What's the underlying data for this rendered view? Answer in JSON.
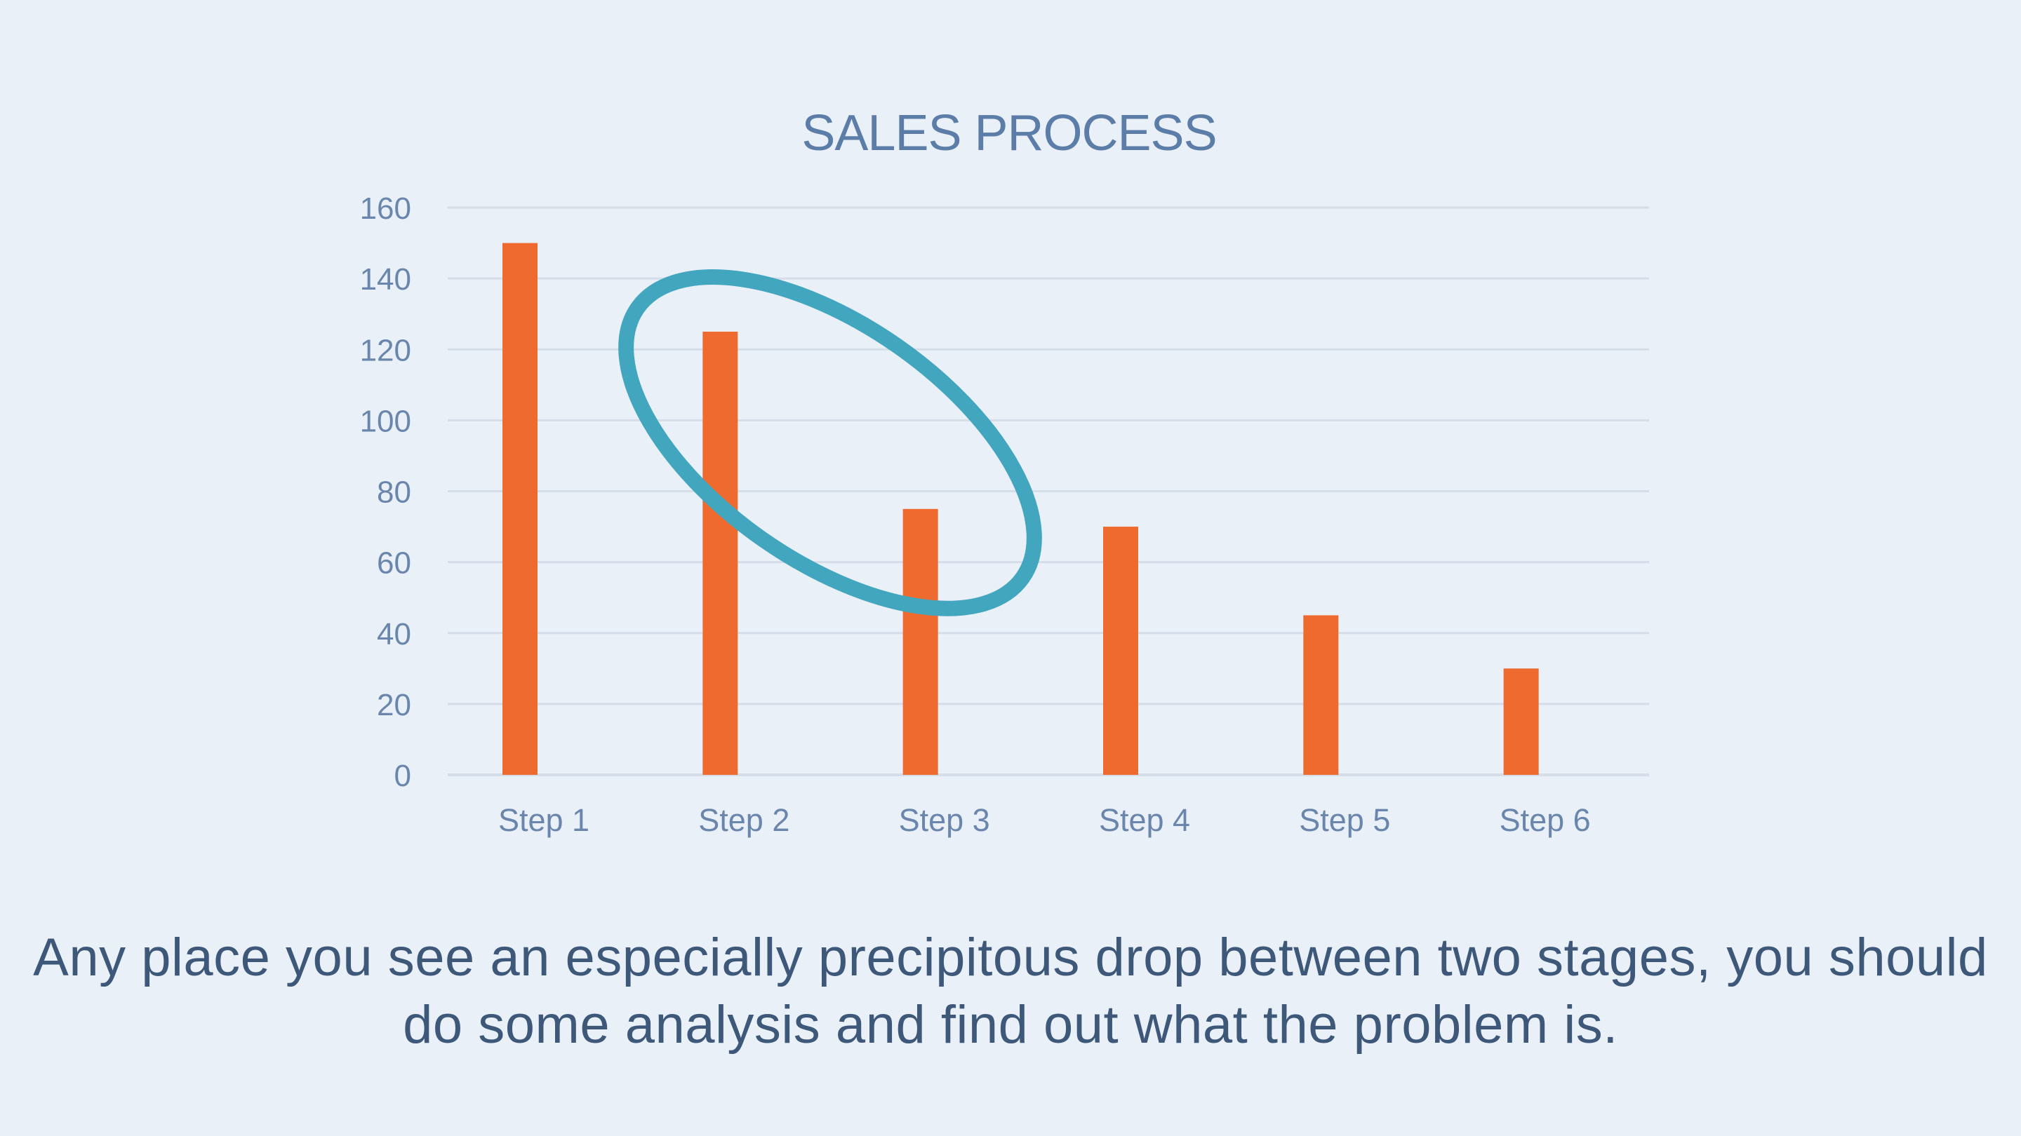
{
  "chart_data": {
    "type": "bar",
    "title": "SALES PROCESS",
    "categories": [
      "Step 1",
      "Step 2",
      "Step 3",
      "Step 4",
      "Step 5",
      "Step 6"
    ],
    "values": [
      150,
      125,
      75,
      70,
      45,
      30
    ],
    "xlabel": "",
    "ylabel": "",
    "ylim": [
      0,
      160
    ],
    "yticks": [
      0,
      20,
      40,
      60,
      80,
      100,
      120,
      140,
      160
    ],
    "grid": true,
    "legend": "none",
    "bar_color": "#ee6a2f",
    "highlight": {
      "shape": "ellipse",
      "color": "#43a6bf",
      "categories": [
        "Step 2",
        "Step 3"
      ]
    }
  },
  "caption": "Any place you see an especially precipitous drop between two stages, you should do some analysis and find out what the problem is."
}
